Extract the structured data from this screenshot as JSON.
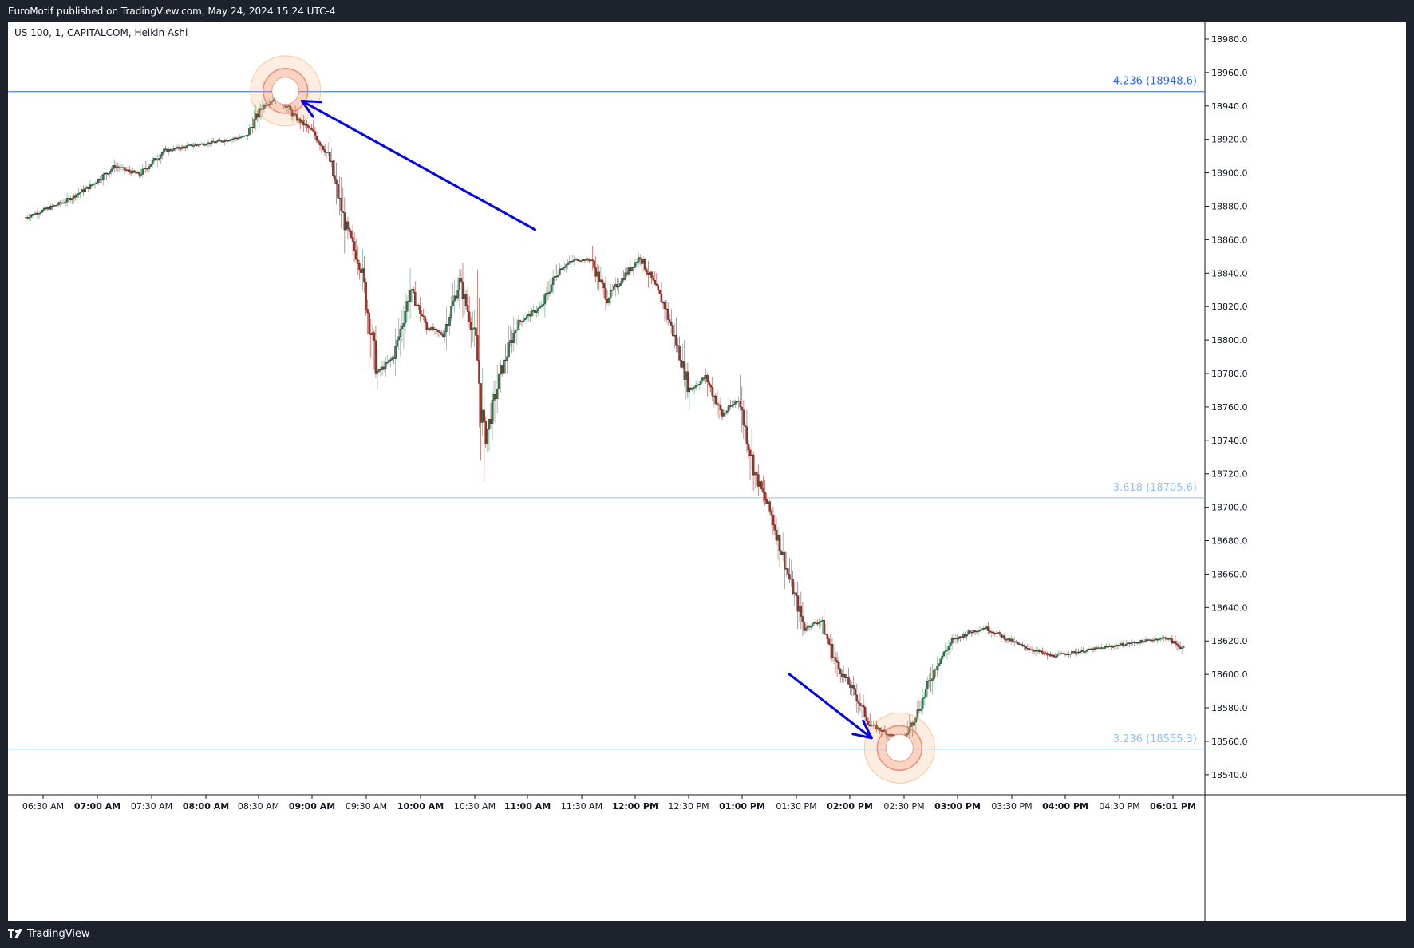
{
  "header": {
    "published_text": "EuroMotif published on TradingView.com, May 24, 2024 15:24 UTC-4"
  },
  "footer": {
    "brand": "TradingView"
  },
  "chart_data": {
    "type": "candlestick",
    "symbol_label": "US 100, 1, CAPITALCOM, Heikin Ashi",
    "ylim": [
      18528,
      18990
    ],
    "y_ticks": [
      18980.0,
      18960.0,
      18940.0,
      18920.0,
      18900.0,
      18880.0,
      18860.0,
      18840.0,
      18820.0,
      18800.0,
      18780.0,
      18760.0,
      18740.0,
      18720.0,
      18700.0,
      18680.0,
      18660.0,
      18640.0,
      18620.0,
      18600.0,
      18580.0,
      18560.0,
      18540.0
    ],
    "y_tick_labels": [
      "18980.0",
      "18960.0",
      "18940.0",
      "18920.0",
      "18900.0",
      "18880.0",
      "18860.0",
      "18840.0",
      "18820.0",
      "18800.0",
      "18780.0",
      "18760.0",
      "18740.0",
      "18720.0",
      "18700.0",
      "18680.0",
      "18660.0",
      "18640.0",
      "18620.0",
      "18600.0",
      "18580.0",
      "18560.0",
      "18540.0"
    ],
    "x_ticks": [
      {
        "label": "06:30 AM",
        "bold": false
      },
      {
        "label": "07:00 AM",
        "bold": true
      },
      {
        "label": "07:30 AM",
        "bold": false
      },
      {
        "label": "08:00 AM",
        "bold": true
      },
      {
        "label": "08:30 AM",
        "bold": false
      },
      {
        "label": "09:00 AM",
        "bold": true
      },
      {
        "label": "09:30 AM",
        "bold": false
      },
      {
        "label": "10:00 AM",
        "bold": true
      },
      {
        "label": "10:30 AM",
        "bold": false
      },
      {
        "label": "11:00 AM",
        "bold": true
      },
      {
        "label": "11:30 AM",
        "bold": false
      },
      {
        "label": "12:00 PM",
        "bold": true
      },
      {
        "label": "12:30 PM",
        "bold": false
      },
      {
        "label": "01:00 PM",
        "bold": true
      },
      {
        "label": "01:30 PM",
        "bold": false
      },
      {
        "label": "02:00 PM",
        "bold": true
      },
      {
        "label": "02:30 PM",
        "bold": false
      },
      {
        "label": "03:00 PM",
        "bold": true
      },
      {
        "label": "03:30 PM",
        "bold": false
      },
      {
        "label": "04:00 PM",
        "bold": true
      },
      {
        "label": "04:30 PM",
        "bold": false
      },
      {
        "label": "06:01 PM",
        "bold": true
      }
    ],
    "fib_levels": [
      {
        "ratio_label": "4.236 (18948.6)",
        "price": 18948.6,
        "color": "#2962ff"
      },
      {
        "ratio_label": "3.618 (18705.6)",
        "price": 18705.6,
        "color": "#90bff9"
      },
      {
        "ratio_label": "3.236 (18555.3)",
        "price": 18555.3,
        "color": "#90bff9"
      }
    ],
    "price_path": [
      {
        "t": "06:20 AM",
        "p": 18873
      },
      {
        "t": "06:45 AM",
        "p": 18883
      },
      {
        "t": "07:00 AM",
        "p": 18892
      },
      {
        "t": "07:15 AM",
        "p": 18904
      },
      {
        "t": "07:30 AM",
        "p": 18899
      },
      {
        "t": "07:45 AM",
        "p": 18913
      },
      {
        "t": "08:00 AM",
        "p": 18916
      },
      {
        "t": "08:20 AM",
        "p": 18919
      },
      {
        "t": "08:35 AM",
        "p": 18922
      },
      {
        "t": "08:45 AM",
        "p": 18940
      },
      {
        "t": "08:55 AM",
        "p": 18946
      },
      {
        "t": "09:05 AM",
        "p": 18933
      },
      {
        "t": "09:15 AM",
        "p": 18925
      },
      {
        "t": "09:25 AM",
        "p": 18911
      },
      {
        "t": "09:35 AM",
        "p": 18870
      },
      {
        "t": "09:45 AM",
        "p": 18843
      },
      {
        "t": "09:55 AM",
        "p": 18780
      },
      {
        "t": "10:05 AM",
        "p": 18790
      },
      {
        "t": "10:15 AM",
        "p": 18830
      },
      {
        "t": "10:25 AM",
        "p": 18808
      },
      {
        "t": "10:35 AM",
        "p": 18803
      },
      {
        "t": "10:45 AM",
        "p": 18835
      },
      {
        "t": "10:55 AM",
        "p": 18800
      },
      {
        "t": "11:00 AM",
        "p": 18738
      },
      {
        "t": "11:10 AM",
        "p": 18780
      },
      {
        "t": "11:20 AM",
        "p": 18810
      },
      {
        "t": "11:35 AM",
        "p": 18820
      },
      {
        "t": "11:45 AM",
        "p": 18842
      },
      {
        "t": "11:55 AM",
        "p": 18848
      },
      {
        "t": "12:05 PM",
        "p": 18848
      },
      {
        "t": "12:15 PM",
        "p": 18825
      },
      {
        "t": "12:25 PM",
        "p": 18838
      },
      {
        "t": "12:35 PM",
        "p": 18850
      },
      {
        "t": "12:50 PM",
        "p": 18820
      },
      {
        "t": "12:58 PM",
        "p": 18795
      },
      {
        "t": "01:05 PM",
        "p": 18770
      },
      {
        "t": "01:15 PM",
        "p": 18778
      },
      {
        "t": "01:25 PM",
        "p": 18755
      },
      {
        "t": "01:35 PM",
        "p": 18765
      },
      {
        "t": "01:45 PM",
        "p": 18720
      },
      {
        "t": "01:55 PM",
        "p": 18695
      },
      {
        "t": "02:05 PM",
        "p": 18660
      },
      {
        "t": "02:15 PM",
        "p": 18628
      },
      {
        "t": "02:25 PM",
        "p": 18632
      },
      {
        "t": "02:35 PM",
        "p": 18605
      },
      {
        "t": "02:45 PM",
        "p": 18590
      },
      {
        "t": "02:55 PM",
        "p": 18570
      },
      {
        "t": "03:05 PM",
        "p": 18565
      },
      {
        "t": "03:15 PM",
        "p": 18560
      },
      {
        "t": "03:25 PM",
        "p": 18580
      },
      {
        "t": "03:35 PM",
        "p": 18605
      },
      {
        "t": "03:45 PM",
        "p": 18620
      },
      {
        "t": "03:55 PM",
        "p": 18625
      },
      {
        "t": "04:05 PM",
        "p": 18628
      },
      {
        "t": "04:25 PM",
        "p": 18618
      },
      {
        "t": "04:45 PM",
        "p": 18611
      },
      {
        "t": "05:55 PM",
        "p": 18622
      },
      {
        "t": "06:05 PM",
        "p": 18616
      }
    ],
    "highlights": [
      {
        "name": "top-circle",
        "t": "08:58 AM",
        "p": 18949
      },
      {
        "name": "bottom-circle",
        "t": "03:12 PM",
        "p": 18556
      }
    ],
    "arrows": [
      {
        "name": "down-arrow-top",
        "from": {
          "t": "11:30 AM",
          "p": 18866
        },
        "to": {
          "t": "09:08 AM",
          "p": 18943
        }
      },
      {
        "name": "down-arrow-bottom",
        "from": {
          "t": "02:05 PM",
          "p": 18600
        },
        "to": {
          "t": "02:55 PM",
          "p": 18562
        }
      }
    ],
    "colors": {
      "up": "#26a69a",
      "down": "#a52a2a",
      "up_body": "#2e7d4f",
      "down_body": "#a8302a",
      "arrow": "#0000ee",
      "circle": "#f5a05a"
    }
  }
}
